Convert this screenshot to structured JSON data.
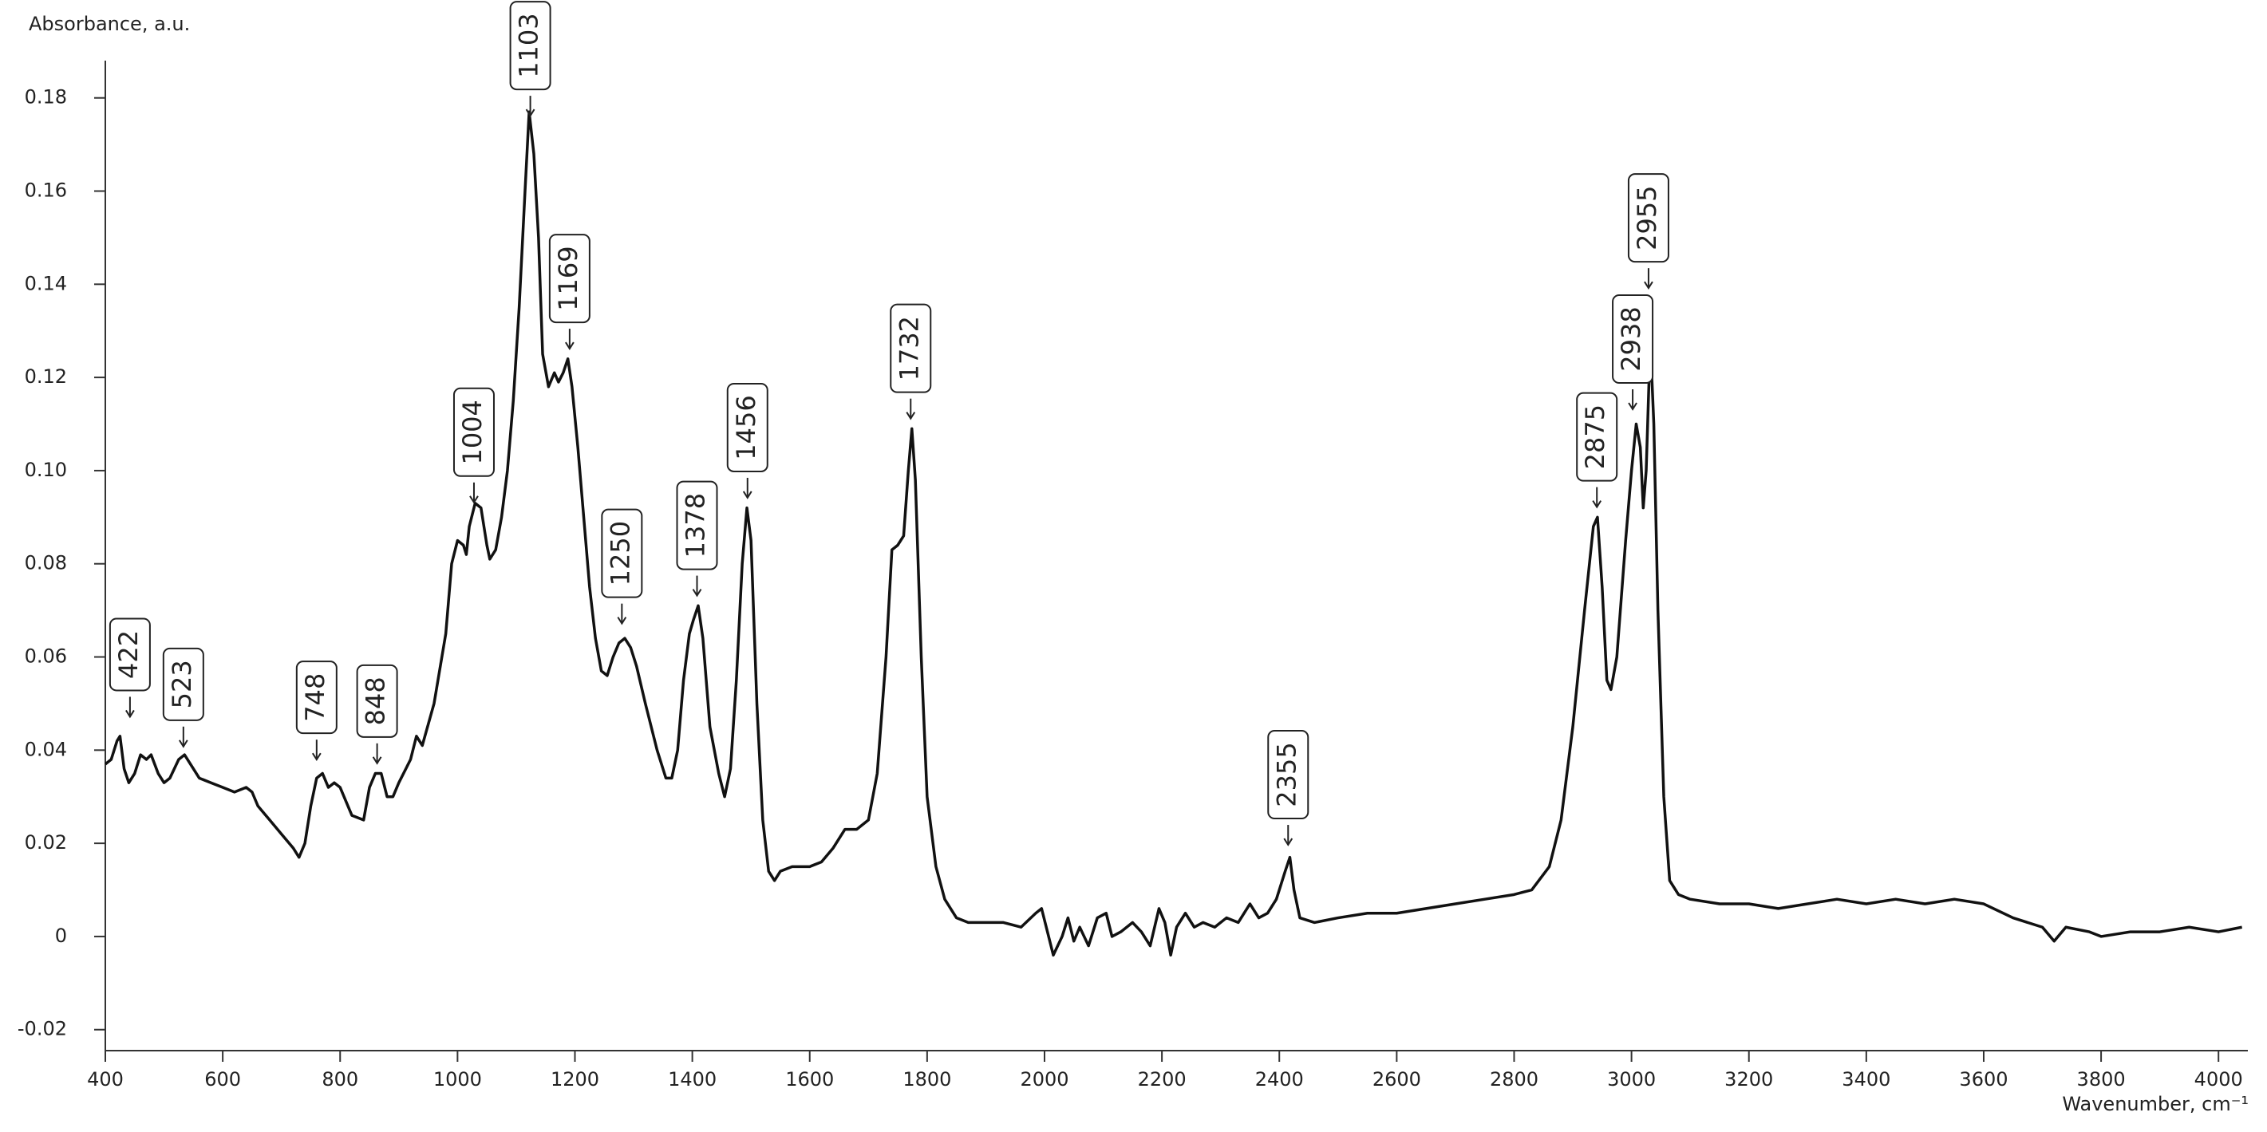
{
  "chart_data": {
    "type": "line",
    "y_label": "Absorbance, a.u.",
    "x_label": "Wavenumber, cm⁻¹",
    "color": "#111111",
    "xlim": [
      400,
      4050
    ],
    "ylim": [
      -0.0245,
      0.188
    ],
    "xticks": [
      400,
      600,
      800,
      1000,
      1200,
      1400,
      1600,
      1800,
      2000,
      2200,
      2400,
      2600,
      2800,
      3000,
      3200,
      3400,
      3600,
      3800,
      4000
    ],
    "yticks": [
      -0.02,
      0,
      0.02,
      0.04,
      0.06,
      0.08,
      {
        "value": 0.1,
        "label": "0.10"
      },
      0.12,
      0.14,
      0.16,
      0.18
    ],
    "x": [
      400,
      410,
      420,
      425,
      432,
      440,
      450,
      460,
      470,
      478,
      490,
      500,
      510,
      525,
      535,
      545,
      560,
      580,
      600,
      620,
      640,
      650,
      660,
      680,
      700,
      720,
      730,
      740,
      750,
      760,
      770,
      780,
      790,
      800,
      810,
      820,
      840,
      850,
      860,
      870,
      880,
      890,
      900,
      920,
      930,
      940,
      960,
      980,
      990,
      1000,
      1010,
      1015,
      1020,
      1030,
      1040,
      1050,
      1055,
      1065,
      1075,
      1085,
      1095,
      1105,
      1115,
      1122,
      1130,
      1138,
      1145,
      1155,
      1165,
      1172,
      1180,
      1188,
      1195,
      1205,
      1215,
      1225,
      1235,
      1245,
      1255,
      1265,
      1275,
      1285,
      1295,
      1305,
      1320,
      1340,
      1355,
      1365,
      1375,
      1385,
      1395,
      1402,
      1410,
      1418,
      1430,
      1445,
      1455,
      1465,
      1475,
      1485,
      1493,
      1500,
      1510,
      1520,
      1530,
      1540,
      1550,
      1570,
      1600,
      1620,
      1640,
      1660,
      1680,
      1700,
      1715,
      1730,
      1740,
      1750,
      1760,
      1768,
      1774,
      1780,
      1790,
      1800,
      1815,
      1830,
      1850,
      1870,
      1900,
      1930,
      1960,
      1985,
      1995,
      2005,
      2015,
      2030,
      2040,
      2050,
      2060,
      2075,
      2090,
      2105,
      2115,
      2130,
      2150,
      2165,
      2180,
      2195,
      2205,
      2215,
      2225,
      2240,
      2255,
      2270,
      2290,
      2310,
      2330,
      2350,
      2365,
      2380,
      2395,
      2410,
      2418,
      2425,
      2435,
      2460,
      2500,
      2550,
      2600,
      2650,
      2700,
      2750,
      2800,
      2830,
      2860,
      2880,
      2900,
      2920,
      2935,
      2942,
      2950,
      2958,
      2965,
      2975,
      2990,
      3000,
      3008,
      3015,
      3020,
      3025,
      3032,
      3038,
      3045,
      3055,
      3065,
      3080,
      3100,
      3150,
      3200,
      3250,
      3300,
      3350,
      3400,
      3450,
      3500,
      3550,
      3600,
      3650,
      3700,
      3720,
      3740,
      3780,
      3800,
      3850,
      3900,
      3950,
      4000,
      4040
    ],
    "values": [
      0.037,
      0.038,
      0.042,
      0.043,
      0.036,
      0.033,
      0.035,
      0.039,
      0.038,
      0.039,
      0.035,
      0.033,
      0.034,
      0.038,
      0.039,
      0.037,
      0.034,
      0.033,
      0.032,
      0.031,
      0.032,
      0.031,
      0.028,
      0.025,
      0.022,
      0.019,
      0.017,
      0.02,
      0.028,
      0.034,
      0.035,
      0.032,
      0.033,
      0.032,
      0.029,
      0.026,
      0.025,
      0.032,
      0.035,
      0.035,
      0.03,
      0.03,
      0.033,
      0.038,
      0.043,
      0.041,
      0.05,
      0.065,
      0.08,
      0.085,
      0.084,
      0.082,
      0.088,
      0.093,
      0.092,
      0.084,
      0.081,
      0.083,
      0.09,
      0.1,
      0.115,
      0.135,
      0.16,
      0.177,
      0.168,
      0.15,
      0.125,
      0.118,
      0.121,
      0.119,
      0.121,
      0.124,
      0.118,
      0.105,
      0.09,
      0.075,
      0.064,
      0.057,
      0.056,
      0.06,
      0.063,
      0.064,
      0.062,
      0.058,
      0.05,
      0.04,
      0.034,
      0.034,
      0.04,
      0.055,
      0.065,
      0.068,
      0.071,
      0.064,
      0.045,
      0.035,
      0.03,
      0.036,
      0.055,
      0.08,
      0.092,
      0.085,
      0.05,
      0.025,
      0.014,
      0.012,
      0.014,
      0.015,
      0.015,
      0.016,
      0.019,
      0.023,
      0.023,
      0.025,
      0.035,
      0.06,
      0.083,
      0.084,
      0.086,
      0.1,
      0.109,
      0.098,
      0.06,
      0.03,
      0.015,
      0.008,
      0.004,
      0.003,
      0.003,
      0.003,
      0.002,
      0.005,
      0.006,
      0.001,
      -0.004,
      0,
      0.004,
      -0.001,
      0.002,
      -0.002,
      0.004,
      0.005,
      0,
      0.001,
      0.003,
      0.001,
      -0.002,
      0.006,
      0.003,
      -0.004,
      0.002,
      0.005,
      0.002,
      0.003,
      0.002,
      0.004,
      0.003,
      0.007,
      0.004,
      0.005,
      0.008,
      0.014,
      0.017,
      0.01,
      0.004,
      0.003,
      0.004,
      0.005,
      0.005,
      0.006,
      0.007,
      0.008,
      0.009,
      0.01,
      0.015,
      0.025,
      0.045,
      0.07,
      0.088,
      0.09,
      0.075,
      0.055,
      0.053,
      0.06,
      0.085,
      0.1,
      0.11,
      0.105,
      0.092,
      0.1,
      0.128,
      0.11,
      0.07,
      0.03,
      0.012,
      0.009,
      0.008,
      0.007,
      0.007,
      0.006,
      0.007,
      0.008,
      0.007,
      0.008,
      0.007,
      0.008,
      0.007,
      0.004,
      0.002,
      -0.001,
      0.002,
      0.001,
      0,
      0.001,
      0.001,
      0.002,
      0.001,
      0.002
    ],
    "annotations": [
      {
        "text": "422",
        "x": 442,
        "y": 0.047
      },
      {
        "text": "523",
        "x": 533,
        "y": 0.0406
      },
      {
        "text": "748",
        "x": 760,
        "y": 0.0378
      },
      {
        "text": "848",
        "x": 863,
        "y": 0.037
      },
      {
        "text": "1004",
        "x": 1028,
        "y": 0.093
      },
      {
        "text": "1103",
        "x": 1124,
        "y": 0.176
      },
      {
        "text": "1169",
        "x": 1191,
        "y": 0.126
      },
      {
        "text": "1250",
        "x": 1280,
        "y": 0.067
      },
      {
        "text": "1378",
        "x": 1408,
        "y": 0.073
      },
      {
        "text": "1456",
        "x": 1494,
        "y": 0.094
      },
      {
        "text": "1732",
        "x": 1772,
        "y": 0.111
      },
      {
        "text": "2355",
        "x": 2415,
        "y": 0.0195
      },
      {
        "text": "2875",
        "x": 2941,
        "y": 0.092
      },
      {
        "text": "2938",
        "x": 3002,
        "y": 0.113
      },
      {
        "text": "2955",
        "x": 3029,
        "y": 0.139
      }
    ]
  }
}
